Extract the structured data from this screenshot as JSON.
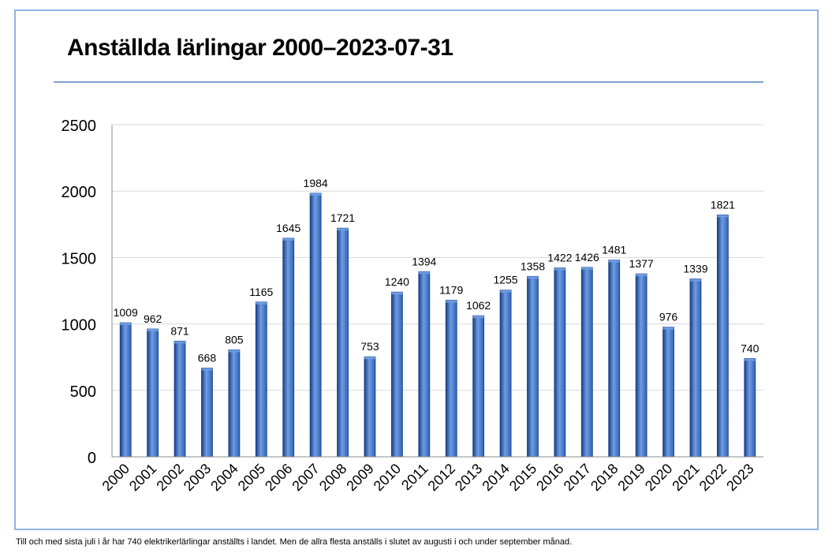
{
  "title": "Anställda lärlingar 2000–2023-07-31",
  "caption": "Till och med sista juli i år har 740 elektrikerlärlingar anställts i landet. Men de allra flesta anställs i slutet av augusti i och under september månad.",
  "colors": {
    "bar": "#2f62b5",
    "bar_dark": "#173f86",
    "bar_light": "#6f9de2",
    "grid": "#d9d9d9",
    "frame": "#8fb4e3",
    "title_rule": "#7f9fd0"
  },
  "chart_data": {
    "type": "bar",
    "title": "Anställda lärlingar 2000–2023-07-31",
    "xlabel": "",
    "ylabel": "",
    "ylim": [
      0,
      2500
    ],
    "yticks": [
      0,
      500,
      1000,
      1500,
      2000,
      2500
    ],
    "grid": true,
    "categories": [
      "2000",
      "2001",
      "2002",
      "2003",
      "2004",
      "2005",
      "2006",
      "2007",
      "2008",
      "2009",
      "2010",
      "2011",
      "2012",
      "2013",
      "2014",
      "2015",
      "2016",
      "2017",
      "2018",
      "2019",
      "2020",
      "2021",
      "2022",
      "2023"
    ],
    "values": [
      1009,
      962,
      871,
      668,
      805,
      1165,
      1645,
      1984,
      1721,
      753,
      1240,
      1394,
      1179,
      1062,
      1255,
      1358,
      1422,
      1426,
      1481,
      1377,
      976,
      1339,
      1821,
      740
    ]
  }
}
